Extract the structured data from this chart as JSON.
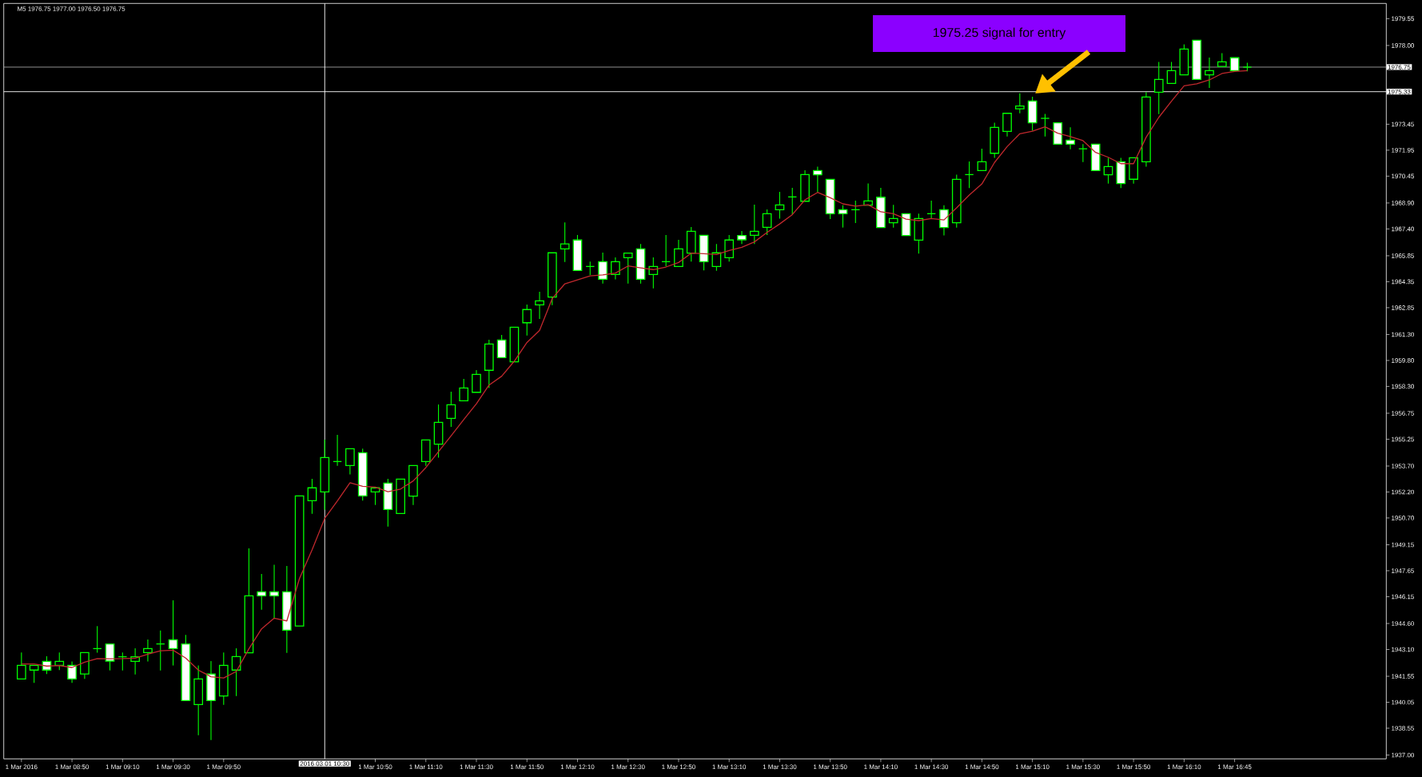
{
  "chart_data": {
    "type": "candlestick",
    "title": "M5 1976.75 1977.00 1976.50 1976.75",
    "categories": [
      "1 Mar 2016",
      null,
      null,
      null,
      "1 Mar 08:50",
      null,
      null,
      null,
      "1 Mar 09:10",
      null,
      null,
      null,
      "1 Mar 09:30",
      null,
      null,
      null,
      "1 Mar 09:50",
      null,
      null,
      null,
      null,
      null,
      null,
      null,
      "2016.03.01 10:30",
      null,
      null,
      null,
      "1 Mar 10:50",
      null,
      null,
      null,
      "1 Mar 11:10",
      null,
      null,
      null,
      "1 Mar 11:30",
      null,
      null,
      null,
      "1 Mar 11:50",
      null,
      null,
      null,
      "1 Mar 12:10",
      null,
      null,
      null,
      "1 Mar 12:30",
      null,
      null,
      null,
      "1 Mar 12:50",
      null,
      null,
      null,
      "1 Mar 13:10",
      null,
      null,
      null,
      "1 Mar 13:30",
      null,
      null,
      null,
      "1 Mar 13:50",
      null,
      null,
      null,
      "1 Mar 14:10",
      null,
      null,
      null,
      "1 Mar 14:30",
      null,
      null,
      null,
      "1 Mar 14:50",
      null,
      null,
      null,
      "1 Mar 15:10",
      null,
      null,
      null,
      "1 Mar 15:30",
      null,
      null,
      null,
      "1 Mar 15:50",
      null,
      null,
      null,
      "1 Mar 16:10",
      null,
      null,
      null,
      "1 Mar 16:45",
      null
    ],
    "series": [
      {
        "type": "line",
        "color": "#c0282d",
        "values": [
          1942.26,
          1942.26,
          1942.14,
          1942.17,
          1942.06,
          1942.37,
          1942.57,
          1942.56,
          1942.57,
          1942.6,
          1942.83,
          1943.02,
          1943.06,
          1942.6,
          1941.91,
          1941.52,
          1941.45,
          1941.83,
          1943.14,
          1944.29,
          1944.91,
          1944.75,
          1947.2,
          1948.86,
          1950.68,
          1951.68,
          1952.73,
          1952.53,
          1952.48,
          1952.22,
          1952.37,
          1952.84,
          1953.61,
          1954.53,
          1955.45,
          1956.38,
          1957.3,
          1958.38,
          1958.89,
          1959.76,
          1960.84,
          1961.54,
          1963.38,
          1964.23,
          1964.46,
          1964.69,
          1964.74,
          1964.85,
          1965.26,
          1965.15,
          1965.05,
          1965.2,
          1965.46,
          1966.0,
          1965.97,
          1965.92,
          1966.15,
          1966.34,
          1966.65,
          1967.2,
          1967.69,
          1968.23,
          1969.08,
          1969.51,
          1969.2,
          1968.85,
          1968.72,
          1968.8,
          1968.39,
          1968.28,
          1967.97,
          1967.88,
          1968.0,
          1967.92,
          1968.62,
          1969.36,
          1970.0,
          1971.24,
          1972.16,
          1972.9,
          1973.05,
          1973.3,
          1972.93,
          1972.74,
          1972.5,
          1971.82,
          1971.54,
          1971.17,
          1971.17,
          1972.7,
          1973.85,
          1974.78,
          1975.67,
          1975.78,
          1976.01,
          1976.38,
          1976.5,
          1976.55
        ]
      },
      {
        "color": "#00ff00",
        "ohlc": [
          [
            1941.4,
            1942.93,
            1941.4,
            1942.18
          ],
          [
            1941.91,
            1942.18,
            1941.17,
            1942.18
          ],
          [
            1942.41,
            1942.71,
            1941.68,
            1941.91
          ],
          [
            1942.18,
            1942.93,
            1941.91,
            1942.41
          ],
          [
            1942.18,
            1942.41,
            1941.17,
            1941.4
          ],
          [
            1941.68,
            1942.92,
            1941.4,
            1942.92
          ],
          [
            1943.15,
            1944.45,
            1942.91,
            1943.15
          ],
          [
            1943.42,
            1943.42,
            1941.89,
            1942.43
          ],
          [
            1942.68,
            1942.93,
            1941.89,
            1942.68
          ],
          [
            1942.41,
            1943.17,
            1941.66,
            1942.68
          ],
          [
            1942.92,
            1943.68,
            1942.41,
            1943.15
          ],
          [
            1943.42,
            1944.19,
            1941.89,
            1943.42
          ],
          [
            1943.66,
            1945.94,
            1942.17,
            1943.15
          ],
          [
            1943.42,
            1943.94,
            1940.15,
            1940.15
          ],
          [
            1939.92,
            1942.18,
            1938.15,
            1941.4
          ],
          [
            1941.68,
            1942.43,
            1937.87,
            1940.15
          ],
          [
            1940.41,
            1942.93,
            1939.9,
            1942.18
          ],
          [
            1941.91,
            1943.17,
            1940.41,
            1942.69
          ],
          [
            1942.91,
            1948.94,
            1942.91,
            1946.2
          ],
          [
            1946.43,
            1947.46,
            1945.4,
            1946.2
          ],
          [
            1946.43,
            1947.99,
            1944.86,
            1946.2
          ],
          [
            1946.43,
            1947.92,
            1942.9,
            1944.21
          ],
          [
            1944.46,
            1951.97,
            1944.46,
            1951.97
          ],
          [
            1951.7,
            1952.96,
            1950.94,
            1952.44
          ],
          [
            1952.2,
            1955.22,
            1951.17,
            1954.19
          ],
          [
            1953.96,
            1955.5,
            1953.71,
            1953.96
          ],
          [
            1953.73,
            1954.7,
            1953.21,
            1954.7
          ],
          [
            1954.47,
            1954.7,
            1951.7,
            1951.97
          ],
          [
            1952.2,
            1952.44,
            1951.45,
            1952.44
          ],
          [
            1952.71,
            1952.96,
            1950.2,
            1951.19
          ],
          [
            1950.96,
            1952.94,
            1950.96,
            1952.94
          ],
          [
            1951.96,
            1953.73,
            1951.45,
            1953.73
          ],
          [
            1953.96,
            1955.21,
            1953.71,
            1955.21
          ],
          [
            1954.96,
            1957.26,
            1954.18,
            1956.22
          ],
          [
            1956.45,
            1957.99,
            1955.96,
            1957.24
          ],
          [
            1957.47,
            1958.73,
            1957.47,
            1958.21
          ],
          [
            1957.96,
            1959.24,
            1957.96,
            1958.99
          ],
          [
            1959.23,
            1961.0,
            1958.21,
            1960.75
          ],
          [
            1960.98,
            1961.27,
            1959.96,
            1959.96
          ],
          [
            1959.72,
            1961.72,
            1959.72,
            1961.72
          ],
          [
            1961.98,
            1963.03,
            1961.24,
            1962.74
          ],
          [
            1963.01,
            1963.77,
            1962.2,
            1963.24
          ],
          [
            1963.46,
            1966.02,
            1963.0,
            1966.02
          ],
          [
            1966.25,
            1967.77,
            1965.49,
            1966.53
          ],
          [
            1966.76,
            1967.05,
            1965.0,
            1965.0
          ],
          [
            1965.23,
            1965.51,
            1964.74,
            1965.23
          ],
          [
            1965.51,
            1966.03,
            1964.24,
            1964.49
          ],
          [
            1964.77,
            1965.75,
            1964.49,
            1965.51
          ],
          [
            1965.74,
            1966.0,
            1964.24,
            1966.0
          ],
          [
            1966.25,
            1966.53,
            1964.24,
            1964.49
          ],
          [
            1964.77,
            1965.75,
            1963.97,
            1965.23
          ],
          [
            1965.51,
            1967.05,
            1965.23,
            1965.51
          ],
          [
            1965.23,
            1966.77,
            1965.23,
            1966.25
          ],
          [
            1966.0,
            1967.51,
            1965.51,
            1967.26
          ],
          [
            1967.03,
            1967.03,
            1965.0,
            1965.51
          ],
          [
            1965.23,
            1966.53,
            1964.98,
            1966.02
          ],
          [
            1965.74,
            1967.05,
            1965.51,
            1966.76
          ],
          [
            1967.02,
            1967.28,
            1966.53,
            1966.77
          ],
          [
            1967.03,
            1968.8,
            1966.53,
            1967.26
          ],
          [
            1967.49,
            1968.53,
            1967.05,
            1968.28
          ],
          [
            1968.51,
            1969.54,
            1968.0,
            1968.79
          ],
          [
            1969.25,
            1969.77,
            1968.23,
            1969.25
          ],
          [
            1969.0,
            1970.79,
            1969.0,
            1970.54
          ],
          [
            1970.77,
            1971.0,
            1969.51,
            1970.53
          ],
          [
            1970.26,
            1970.26,
            1967.97,
            1968.28
          ],
          [
            1968.51,
            1968.77,
            1967.48,
            1968.28
          ],
          [
            1968.51,
            1969.03,
            1967.74,
            1968.51
          ],
          [
            1968.77,
            1970.03,
            1968.77,
            1969.02
          ],
          [
            1969.23,
            1969.77,
            1967.48,
            1967.48
          ],
          [
            1967.76,
            1968.79,
            1967.48,
            1968.0
          ],
          [
            1968.28,
            1968.28,
            1967.02,
            1967.02
          ],
          [
            1966.75,
            1968.28,
            1965.98,
            1968.0
          ],
          [
            1968.28,
            1969.03,
            1968.0,
            1968.28
          ],
          [
            1968.51,
            1968.77,
            1967.02,
            1967.48
          ],
          [
            1967.76,
            1970.54,
            1967.48,
            1970.26
          ],
          [
            1970.54,
            1971.3,
            1969.76,
            1970.54
          ],
          [
            1970.77,
            1972.04,
            1970.77,
            1971.28
          ],
          [
            1971.77,
            1973.54,
            1971.51,
            1973.27
          ],
          [
            1973.04,
            1974.1,
            1972.74,
            1974.08
          ],
          [
            1974.34,
            1975.23,
            1974.08,
            1974.5
          ],
          [
            1974.79,
            1975.04,
            1973.08,
            1973.53
          ],
          [
            1973.79,
            1974.05,
            1972.74,
            1973.79
          ],
          [
            1973.53,
            1973.53,
            1972.3,
            1972.3
          ],
          [
            1972.53,
            1973.27,
            1972.0,
            1972.3
          ],
          [
            1972.03,
            1972.3,
            1971.26,
            1972.03
          ],
          [
            1972.3,
            1972.3,
            1970.77,
            1970.77
          ],
          [
            1970.53,
            1971.51,
            1970.02,
            1971.0
          ],
          [
            1971.28,
            1971.51,
            1969.76,
            1970.02
          ],
          [
            1970.27,
            1971.51,
            1970.02,
            1971.51
          ],
          [
            1971.28,
            1975.3,
            1971.0,
            1975.02
          ],
          [
            1975.3,
            1977.05,
            1974.04,
            1976.04
          ],
          [
            1975.81,
            1977.05,
            1975.81,
            1976.55
          ],
          [
            1976.3,
            1978.07,
            1976.3,
            1977.79
          ],
          [
            1978.3,
            1978.3,
            1976.04,
            1976.04
          ],
          [
            1976.3,
            1977.3,
            1975.55,
            1976.55
          ],
          [
            1976.79,
            1977.56,
            1976.79,
            1977.05
          ],
          [
            1977.29,
            1977.29,
            1976.55,
            1976.55
          ],
          [
            1976.75,
            1977.0,
            1976.5,
            1976.75
          ]
        ]
      }
    ],
    "ylim": [
      1936.78,
      1980.43
    ],
    "yticks": [
      {
        "value": 1979.55,
        "label": "1979.55"
      },
      {
        "value": 1978.0,
        "label": "1978.00"
      },
      {
        "value": 1973.45,
        "label": "1973.45"
      },
      {
        "value": 1971.95,
        "label": "1971.95"
      },
      {
        "value": 1970.45,
        "label": "1970.45"
      },
      {
        "value": 1968.9,
        "label": "1968.90"
      },
      {
        "value": 1967.4,
        "label": "1967.40"
      },
      {
        "value": 1965.85,
        "label": "1965.85"
      },
      {
        "value": 1964.35,
        "label": "1964.35"
      },
      {
        "value": 1962.85,
        "label": "1962.85"
      },
      {
        "value": 1961.3,
        "label": "1961.30"
      },
      {
        "value": 1959.8,
        "label": "1959.80"
      },
      {
        "value": 1958.3,
        "label": "1958.30"
      },
      {
        "value": 1956.75,
        "label": "1956.75"
      },
      {
        "value": 1955.25,
        "label": "1955.25"
      },
      {
        "value": 1953.7,
        "label": "1953.70"
      },
      {
        "value": 1952.2,
        "label": "1952.20"
      },
      {
        "value": 1950.7,
        "label": "1950.70"
      },
      {
        "value": 1949.15,
        "label": "1949.15"
      },
      {
        "value": 1947.65,
        "label": "1947.65"
      },
      {
        "value": 1946.15,
        "label": "1946.15"
      },
      {
        "value": 1944.6,
        "label": "1944.60"
      },
      {
        "value": 1943.1,
        "label": "1943.10"
      },
      {
        "value": 1941.55,
        "label": "1941.55"
      },
      {
        "value": 1940.05,
        "label": "1940.05"
      },
      {
        "value": 1938.55,
        "label": "1938.55"
      },
      {
        "value": 1937.0,
        "label": "1937.00"
      }
    ],
    "ref_lines": [
      {
        "axis": "y",
        "value": 1976.75,
        "label": "1976.75",
        "color": "#a0a0a0"
      },
      {
        "axis": "y",
        "value": 1975.33,
        "label": "1975.33",
        "color": "#ffffff"
      },
      {
        "axis": "x",
        "value": "2016.03.01 10:30",
        "color": "#ffffff"
      }
    ],
    "annotations": [
      "1975.25 signal for entry"
    ]
  }
}
